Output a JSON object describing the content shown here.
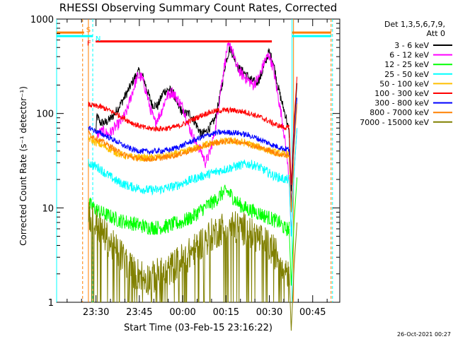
{
  "chart_data": {
    "type": "line",
    "title": "RHESSI Observing Summary Count Rates, Corrected",
    "xlabel": "Start Time (03-Feb-15 23:16:22)",
    "ylabel": "Corrected Count Rate (s⁻¹ detector⁻¹)",
    "x_unit": "minutes after 23:16:22",
    "x_range": [
      0,
      98
    ],
    "x_ticks": [
      {
        "x": 13.63,
        "label": "23:30"
      },
      {
        "x": 28.63,
        "label": "23:45"
      },
      {
        "x": 43.63,
        "label": "00:00"
      },
      {
        "x": 58.63,
        "label": "00:15"
      },
      {
        "x": 73.63,
        "label": "00:30"
      },
      {
        "x": 88.63,
        "label": "00:45"
      }
    ],
    "y_scale": "log",
    "ylim": [
      1,
      1000
    ],
    "y_tick_labels": [
      "1",
      "10",
      "100",
      "1000"
    ],
    "grid": false,
    "legend_position": "right",
    "legend_header": [
      "Det 1,3,5,6,7,9,",
      "Att 0"
    ],
    "annotations": [
      "S",
      "N",
      "F"
    ],
    "bars": [
      {
        "label": "S",
        "color": "#ff8000",
        "x": [
          0,
          9.5
        ],
        "y": 720
      },
      {
        "label": "N",
        "color": "#00ffff",
        "x": [
          0,
          12.5
        ],
        "y": 660
      },
      {
        "label": "F",
        "color": "#ff0000",
        "x": [
          13.5,
          74.5
        ],
        "y": 580
      },
      {
        "label": "",
        "color": "#ff8000",
        "x": [
          81.5,
          95
        ],
        "y": 720
      },
      {
        "label": "",
        "color": "#00ffff",
        "x": [
          81.5,
          95
        ],
        "y": 660
      }
    ],
    "vlines": [
      {
        "x": 0,
        "color": "#00ffff",
        "style": "solid"
      },
      {
        "x": 9,
        "color": "#ff8000",
        "style": "dashed"
      },
      {
        "x": 11,
        "color": "#ff8000",
        "style": "solid"
      },
      {
        "x": 12.5,
        "color": "#00ffff",
        "style": "dashed"
      },
      {
        "x": 81.5,
        "color": "#00ffff",
        "style": "solid"
      },
      {
        "x": 82,
        "color": "#ff8000",
        "style": "solid"
      },
      {
        "x": 95,
        "color": "#ff8000",
        "style": "dashed"
      },
      {
        "x": 95.5,
        "color": "#00ffff",
        "style": "dashed"
      }
    ],
    "series": [
      {
        "name": "3 - 6 keV",
        "color": "#000000",
        "x": [
          13.5,
          14,
          15,
          17,
          19,
          21,
          23,
          25,
          27,
          28.5,
          30,
          31.5,
          33,
          35,
          37,
          39,
          40.5,
          42,
          44,
          46,
          48,
          50,
          52,
          53.5,
          55,
          57,
          58.5,
          60,
          61.5,
          63,
          65,
          67,
          69,
          70.5,
          72,
          73.5,
          75,
          76.5,
          78,
          79.5,
          80.5
        ],
        "y": [
          60,
          95,
          80,
          80,
          90,
          110,
          140,
          180,
          240,
          280,
          240,
          170,
          125,
          120,
          170,
          180,
          160,
          120,
          100,
          100,
          80,
          60,
          65,
          75,
          90,
          180,
          350,
          500,
          390,
          300,
          270,
          230,
          210,
          240,
          330,
          450,
          350,
          200,
          130,
          90,
          60
        ]
      },
      {
        "name": "6 - 12 keV",
        "color": "#ff00ff",
        "x": [
          14,
          16,
          18,
          20,
          22,
          24,
          26,
          28,
          29.5,
          31,
          32.5,
          34,
          36,
          38,
          40,
          42,
          44,
          46,
          48,
          50,
          51.5,
          53,
          55,
          57,
          59,
          60.5,
          62,
          64,
          66,
          68,
          70,
          72,
          73.5,
          75,
          76.5,
          78,
          79.5,
          80.5
        ],
        "y": [
          60,
          65,
          60,
          70,
          80,
          100,
          160,
          250,
          240,
          170,
          110,
          80,
          100,
          150,
          170,
          140,
          110,
          70,
          50,
          40,
          30,
          38,
          70,
          200,
          480,
          520,
          330,
          260,
          230,
          200,
          240,
          360,
          420,
          300,
          160,
          90,
          40,
          20
        ]
      },
      {
        "name": "12 - 25 keV",
        "color": "#00ff00",
        "x": [
          11,
          13,
          15,
          17,
          19,
          21,
          23,
          25,
          27,
          29,
          31,
          33,
          35,
          37,
          39,
          41,
          43,
          45,
          47,
          49,
          51,
          53,
          55,
          57,
          59,
          61,
          63,
          65,
          67,
          69,
          71,
          73,
          75,
          77,
          79,
          80.5
        ],
        "y": [
          11,
          10,
          9,
          8.5,
          8,
          7.5,
          7.2,
          7,
          6.8,
          6.5,
          6.3,
          6.2,
          6.2,
          6.3,
          6.5,
          6.8,
          7,
          7.5,
          8,
          9,
          10,
          11,
          12,
          14,
          15,
          13,
          11,
          10,
          9.5,
          9,
          8.5,
          8,
          7.5,
          7,
          6,
          6
        ]
      },
      {
        "name": "25 - 50 keV",
        "color": "#00ffff",
        "x": [
          11,
          13,
          15,
          17,
          19,
          21,
          23,
          25,
          27,
          29,
          31,
          33,
          35,
          37,
          39,
          41,
          43,
          45,
          47,
          49,
          51,
          53,
          55,
          57,
          59,
          61,
          63,
          65,
          67,
          69,
          71,
          73,
          75,
          77,
          79,
          80.5
        ],
        "y": [
          30,
          28,
          26,
          23,
          21,
          19,
          18,
          17,
          16.5,
          16,
          15.5,
          15.5,
          15.5,
          16,
          16.5,
          17,
          18,
          19,
          20,
          21,
          22,
          23,
          24,
          25,
          26,
          27,
          28,
          29,
          29,
          28,
          26,
          24,
          22,
          21,
          20,
          20
        ]
      },
      {
        "name": "50 - 100 keV",
        "color": "#ffbf00",
        "x": [
          11,
          13,
          15,
          17,
          19,
          21,
          23,
          25,
          27,
          29,
          31,
          33,
          35,
          37,
          39,
          41,
          43,
          45,
          47,
          49,
          51,
          53,
          55,
          57,
          59,
          61,
          63,
          65,
          67,
          69,
          71,
          73,
          75,
          77,
          79,
          80.5
        ],
        "y": [
          55,
          50,
          47,
          44,
          41,
          38,
          36,
          35,
          34.5,
          34,
          34,
          34,
          34.5,
          35,
          36,
          37,
          38,
          40,
          42,
          44,
          46,
          48,
          49,
          50,
          51,
          51,
          50,
          49,
          47,
          45,
          43,
          41,
          39,
          38,
          37,
          37
        ]
      },
      {
        "name": "100 - 300 keV",
        "color": "#ff0000",
        "x": [
          11,
          13,
          15,
          17,
          19,
          21,
          23,
          25,
          27,
          29,
          31,
          33,
          35,
          37,
          39,
          41,
          43,
          45,
          47,
          49,
          51,
          53,
          55,
          57,
          59,
          61,
          63,
          65,
          67,
          69,
          71,
          73,
          75,
          77,
          79,
          80.5
        ],
        "y": [
          125,
          120,
          118,
          112,
          105,
          98,
          90,
          83,
          77,
          73,
          70,
          69,
          69,
          69,
          70,
          72,
          75,
          80,
          86,
          92,
          98,
          103,
          106,
          108,
          108,
          108,
          106,
          104,
          100,
          95,
          90,
          84,
          78,
          74,
          71,
          70
        ]
      },
      {
        "name": "300 - 800 keV",
        "color": "#0000ff",
        "x": [
          11,
          13,
          15,
          17,
          19,
          21,
          23,
          25,
          27,
          29,
          31,
          33,
          35,
          37,
          39,
          41,
          43,
          45,
          47,
          49,
          51,
          53,
          55,
          57,
          59,
          61,
          63,
          65,
          67,
          69,
          71,
          73,
          75,
          77,
          79,
          80.5
        ],
        "y": [
          72,
          66,
          62,
          58,
          54,
          50,
          46,
          43,
          41,
          40,
          39.5,
          39.5,
          40,
          40.5,
          41,
          43,
          45,
          48,
          51,
          54,
          57,
          60,
          62,
          63,
          63,
          63,
          62,
          60,
          58,
          55,
          52,
          49,
          46,
          44,
          42,
          42
        ]
      },
      {
        "name": "800 - 7000 keV",
        "color": "#ff8000",
        "x": [
          11,
          13,
          15,
          17,
          19,
          21,
          23,
          25,
          27,
          29,
          31,
          33,
          35,
          37,
          39,
          41,
          43,
          45,
          47,
          49,
          51,
          53,
          55,
          57,
          59,
          61,
          63,
          65,
          67,
          69,
          71,
          73,
          75,
          77,
          79,
          80.5
        ],
        "y": [
          62,
          56,
          52,
          48,
          44,
          40,
          37,
          35,
          34,
          33,
          33,
          33,
          33.5,
          34,
          35,
          36,
          37.5,
          39,
          41,
          43,
          45,
          47,
          49,
          50,
          51,
          51,
          50,
          49,
          47,
          45,
          43,
          41,
          39,
          37,
          36,
          36
        ]
      },
      {
        "name": "7000 - 15000 keV",
        "color": "#808000",
        "x": [
          11,
          13,
          15,
          17,
          19,
          21,
          23,
          25,
          27,
          29,
          31,
          33,
          35,
          37,
          39,
          41,
          43,
          45,
          47,
          49,
          51,
          53,
          55,
          57,
          59,
          61,
          63,
          65,
          67,
          69,
          71,
          73,
          75,
          77,
          79,
          80.5
        ],
        "y": [
          9,
          7,
          6,
          5,
          4,
          3.5,
          3,
          2.5,
          2,
          2,
          1.8,
          1.8,
          2,
          2,
          2.2,
          2.5,
          2.8,
          3,
          3.5,
          4,
          4.5,
          5,
          5.5,
          6,
          6.5,
          6.5,
          6,
          6,
          5.5,
          5,
          4.5,
          4,
          3.5,
          3,
          2.5,
          2
        ]
      }
    ]
  },
  "footer_timestamp": "26-Oct-2021 00:27"
}
